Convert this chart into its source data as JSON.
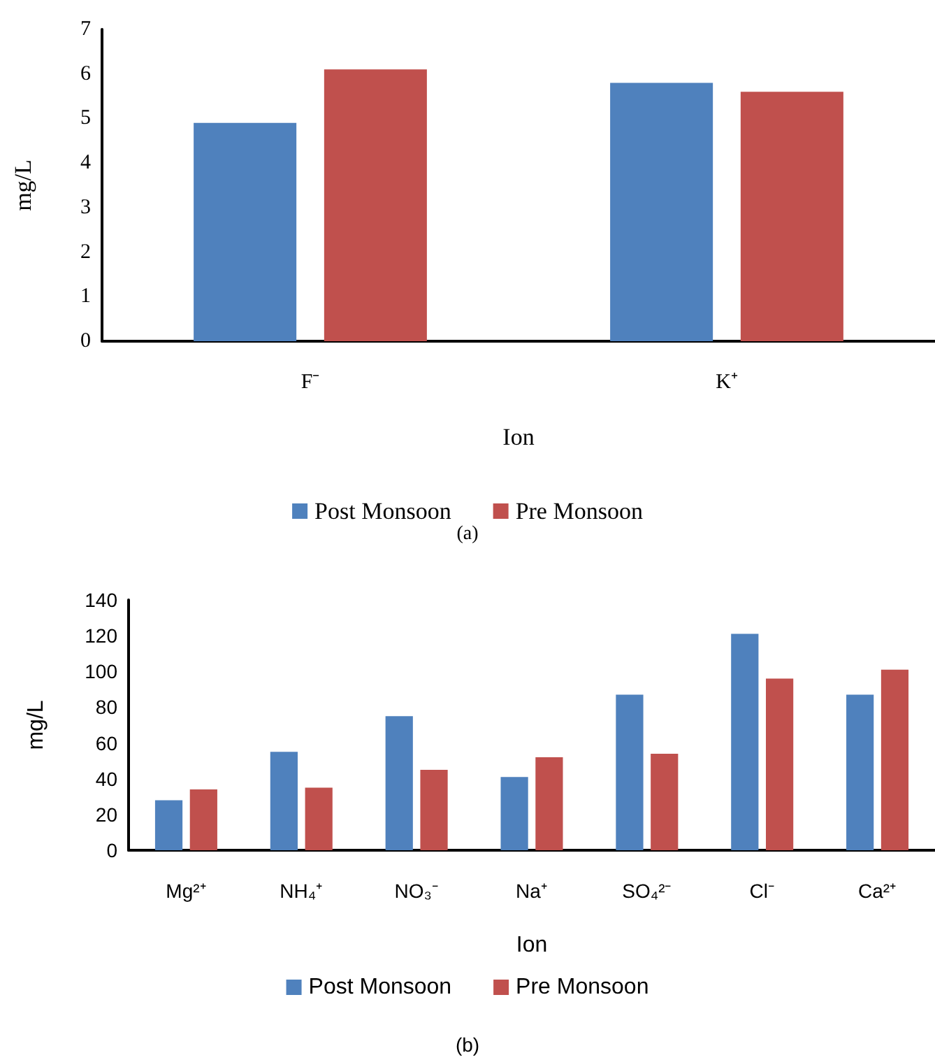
{
  "chart_data": [
    {
      "type": "bar",
      "xlabel": "Ion",
      "ylabel": "mg/L",
      "categories": [
        "F⁻",
        "K⁺"
      ],
      "series": [
        {
          "name": "Post Monsoon",
          "color": "#4f81bd",
          "values": [
            4.9,
            5.8
          ]
        },
        {
          "name": "Pre Monsoon",
          "color": "#c0504d",
          "values": [
            6.1,
            5.6
          ]
        }
      ],
      "ylim": [
        0,
        7
      ],
      "yticks": [
        0,
        1,
        2,
        3,
        4,
        5,
        6,
        7
      ],
      "grid": false,
      "legend": "bottom",
      "annotations": [
        "(a)"
      ]
    },
    {
      "type": "bar",
      "xlabel": "Ion",
      "ylabel": "mg/L",
      "categories": [
        "Mg²⁺",
        "NH₄⁺",
        "NO₃⁻",
        "Na⁺",
        "SO₄²⁻",
        "Cl⁻",
        "Ca²⁺"
      ],
      "series": [
        {
          "name": "Post Monsoon",
          "color": "#4f81bd",
          "values": [
            28,
            55,
            75,
            41,
            87,
            121,
            87
          ]
        },
        {
          "name": "Pre Monsoon",
          "color": "#c0504d",
          "values": [
            34,
            35,
            45,
            52,
            54,
            96,
            101
          ]
        }
      ],
      "ylim": [
        0,
        140
      ],
      "yticks": [
        0,
        20,
        40,
        60,
        80,
        100,
        120,
        140
      ],
      "grid": false,
      "legend": "bottom",
      "annotations": [
        "(b)"
      ]
    }
  ]
}
